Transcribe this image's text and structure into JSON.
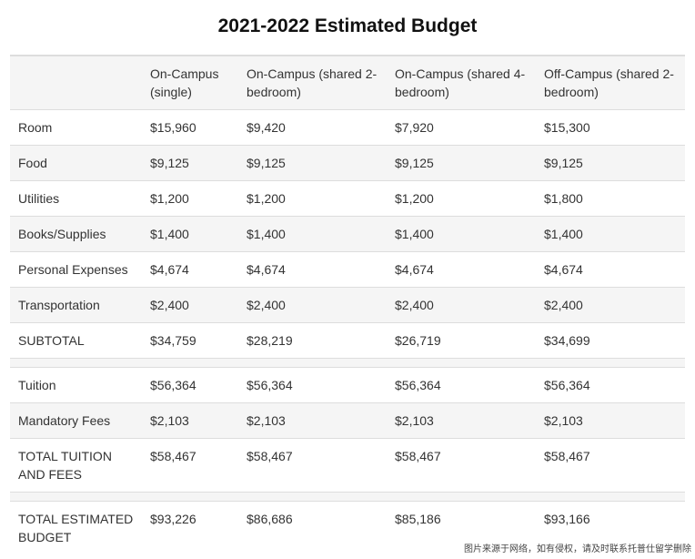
{
  "title": "2021-2022 Estimated Budget",
  "headers": [
    "",
    "On-Campus (single)",
    "On-Campus (shared 2-bedroom)",
    "On-Campus (shared 4-bedroom)",
    "Off-Campus (shared 2-bedroom)"
  ],
  "rows": [
    [
      "Room",
      "$15,960",
      "$9,420",
      "$7,920",
      "$15,300"
    ],
    [
      "Food",
      "$9,125",
      "$9,125",
      "$9,125",
      "$9,125"
    ],
    [
      "Utilities",
      "$1,200",
      "$1,200",
      "$1,200",
      "$1,800"
    ],
    [
      "Books/Supplies",
      "$1,400",
      "$1,400",
      "$1,400",
      "$1,400"
    ],
    [
      "Personal Expenses",
      "$4,674",
      "$4,674",
      "$4,674",
      "$4,674"
    ],
    [
      "Transportation",
      "$2,400",
      "$2,400",
      "$2,400",
      "$2,400"
    ],
    [
      "SUBTOTAL",
      "$34,759",
      "$28,219",
      "$26,719",
      "$34,699"
    ],
    [
      "Tuition",
      "$56,364",
      "$56,364",
      "$56,364",
      "$56,364"
    ],
    [
      "Mandatory Fees",
      "$2,103",
      "$2,103",
      "$2,103",
      "$2,103"
    ],
    [
      "TOTAL TUITION AND FEES",
      "$58,467",
      "$58,467",
      "$58,467",
      "$58,467"
    ],
    [
      "TOTAL ESTIMATED BUDGET",
      "$93,226",
      "$86,686",
      "$85,186",
      "$93,166"
    ]
  ],
  "watermark": "图片来源于网络，如有侵权，请及时联系托普仕留学删除",
  "colors": {
    "header_bg": "#f5f5f5",
    "stripe_bg": "#f5f5f5",
    "border": "#dddddd",
    "text": "#333333"
  }
}
